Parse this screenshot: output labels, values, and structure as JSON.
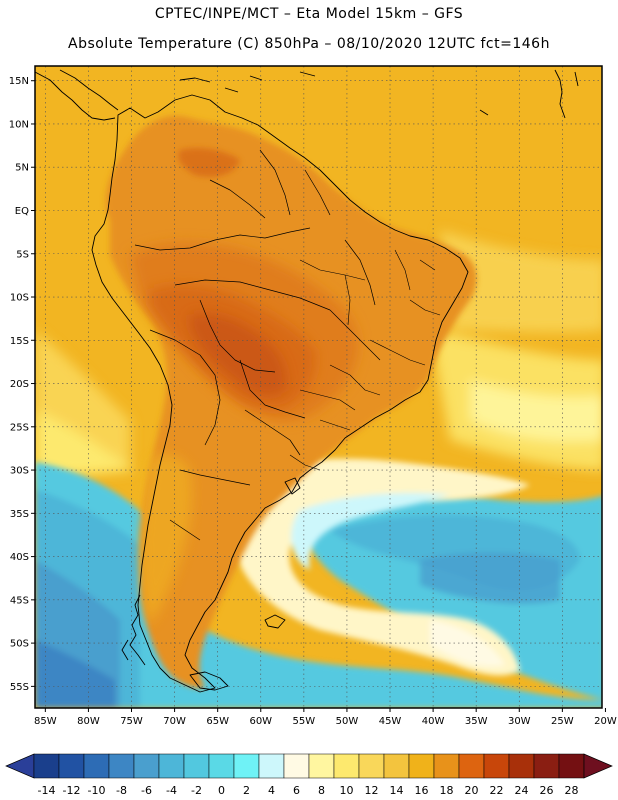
{
  "header": {
    "line1": "CPTEC/INPE/MCT –  Eta Model 15km – GFS",
    "line2": "Absolute Temperature (C) 850hPa – 08/10/2020 12UTC fct=146h"
  },
  "axes": {
    "lat_labels": [
      "15N",
      "10N",
      "5N",
      "EQ",
      "5S",
      "10S",
      "15S",
      "20S",
      "25S",
      "30S",
      "35S",
      "40S",
      "45S",
      "50S",
      "55S"
    ],
    "lat_values": [
      15,
      10,
      5,
      0,
      -5,
      -10,
      -15,
      -20,
      -25,
      -30,
      -35,
      -40,
      -45,
      -50,
      -55
    ],
    "lon_labels": [
      "85W",
      "80W",
      "75W",
      "70W",
      "65W",
      "60W",
      "55W",
      "50W",
      "45W",
      "40W",
      "35W",
      "30W",
      "25W",
      "20W"
    ],
    "lon_values": [
      -85,
      -80,
      -75,
      -70,
      -65,
      -60,
      -55,
      -50,
      -45,
      -40,
      -35,
      -30,
      -25,
      -20
    ],
    "lat_range": [
      -57.5,
      16.7
    ],
    "lon_range": [
      -86.2,
      -20.4
    ]
  },
  "colorbar": {
    "labels": [
      "-14",
      "-12",
      "-10",
      "-8",
      "-6",
      "-4",
      "-2",
      "0",
      "2",
      "4",
      "6",
      "8",
      "10",
      "12",
      "14",
      "16",
      "18",
      "20",
      "22",
      "24",
      "26",
      "28"
    ],
    "bins": [
      "#1a3f8c",
      "#2152a3",
      "#2d6cb5",
      "#3d86c4",
      "#4a9fce",
      "#4db6d8",
      "#52c8df",
      "#5ad9e6",
      "#6ff2f6",
      "#cdf7fb",
      "#fffae4",
      "#fff6a0",
      "#fde96e",
      "#f9d75a",
      "#f3c43e",
      "#f0b21a",
      "#e8921a",
      "#dd6410",
      "#c8460a",
      "#a8300a",
      "#8a1e12",
      "#741012"
    ],
    "under_color": "#2a3f99",
    "over_color": "#6e0f1f"
  },
  "map": {
    "ocean_base": "#f2b522",
    "land_base": "#e79123",
    "hot_core": "#d86a19",
    "hot_center": "#c95413",
    "south_cool": "#fde96e",
    "cold_ocean": "#55c9e0",
    "cold_core": "#4db6d8",
    "cold_deep": "#4a9fce",
    "pale_tongue": "#fff6c8",
    "boundary_color": "#000000",
    "grid_color": "#555555"
  }
}
